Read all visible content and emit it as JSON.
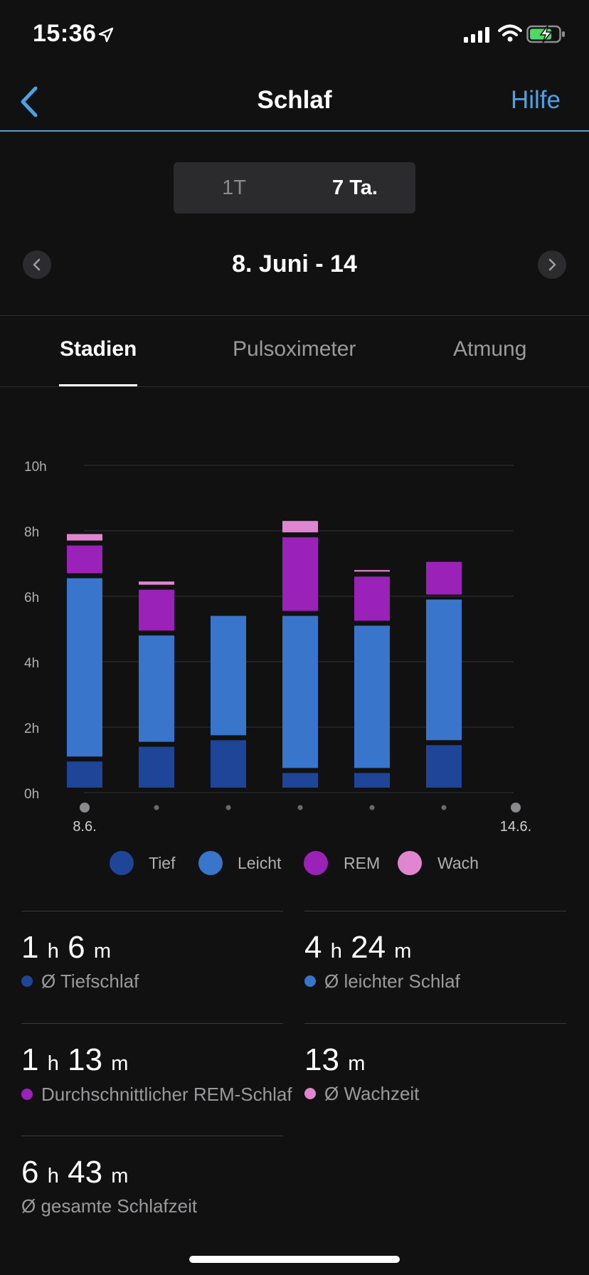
{
  "status": {
    "time": "15:36"
  },
  "nav": {
    "title": "Schlaf",
    "help": "Hilfe"
  },
  "period": {
    "options": [
      "1T",
      "7 Ta."
    ],
    "selected": "7 Ta."
  },
  "date_range": "8. Juni - 14",
  "tabs": [
    "Stadien",
    "Pulsoximeter",
    "Atmung"
  ],
  "colors": {
    "tief": "#1e4597",
    "leicht": "#3976cb",
    "rem": "#9b22b9",
    "wach": "#e085d0",
    "accent": "#4aa3e6"
  },
  "chart_data": {
    "type": "bar",
    "stacked": true,
    "ylabel_unit": "h",
    "ylim": [
      0,
      10
    ],
    "y_ticks": [
      "0h",
      "2h",
      "4h",
      "6h",
      "8h",
      "10h"
    ],
    "x_labels": [
      "8.6.",
      "14.6."
    ],
    "categories": [
      "8.6.",
      "9.6.",
      "10.6.",
      "11.6.",
      "12.6.",
      "13.6.",
      "14.6."
    ],
    "series": [
      {
        "name": "Tief",
        "values": [
          0.95,
          1.4,
          1.6,
          0.6,
          0.6,
          1.45,
          0
        ]
      },
      {
        "name": "Leicht",
        "values": [
          5.6,
          3.4,
          3.8,
          4.8,
          4.5,
          4.45,
          0
        ]
      },
      {
        "name": "REM",
        "values": [
          1.0,
          1.4,
          0,
          2.4,
          1.5,
          1.15,
          0
        ]
      },
      {
        "name": "Wach",
        "values": [
          0.35,
          0.25,
          0.15,
          0.5,
          0.2,
          0,
          0
        ]
      }
    ]
  },
  "legend": [
    "Tief",
    "Leicht",
    "REM",
    "Wach"
  ],
  "stats": {
    "tief": {
      "h": "1",
      "m": "6",
      "label": "Ø Tiefschlaf"
    },
    "leicht": {
      "h": "4",
      "m": "24",
      "label": "Ø leichter Schlaf"
    },
    "rem": {
      "h": "1",
      "m": "13",
      "label": "Durchschnittlicher REM-Schlaf"
    },
    "wach": {
      "m": "13",
      "label": "Ø Wachzeit"
    },
    "gesamt": {
      "h": "6",
      "m": "43",
      "label": "Ø gesamte Schlafzeit"
    },
    "unit_h": "h",
    "unit_m": "m"
  }
}
